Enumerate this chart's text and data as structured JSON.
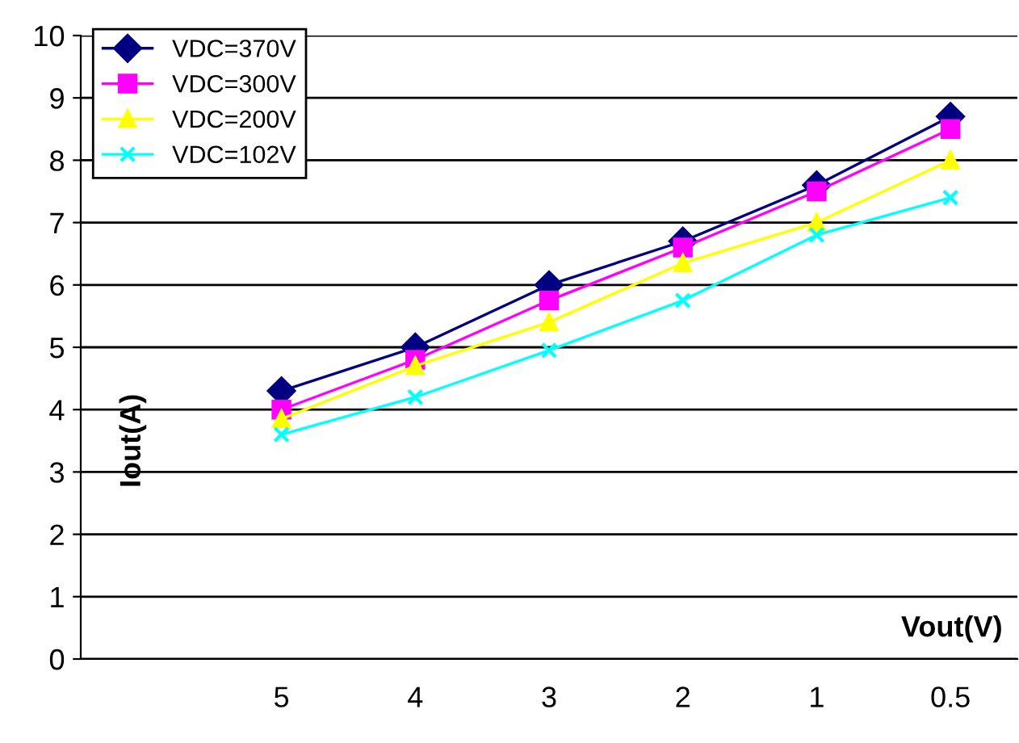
{
  "chart_data": {
    "type": "line",
    "xlabel": "Vout(V)",
    "ylabel": "Iout(A)",
    "categories": [
      null,
      "5",
      "4",
      "3",
      "2",
      "1",
      "0.5"
    ],
    "series": [
      {
        "name": "VDC=370V",
        "color": "#000080",
        "marker": "diamond",
        "values": [
          null,
          4.3,
          5.0,
          6.0,
          6.7,
          7.6,
          8.7
        ]
      },
      {
        "name": "VDC=300V",
        "color": "#ff00ff",
        "marker": "square",
        "values": [
          null,
          4.0,
          4.8,
          5.75,
          6.6,
          7.5,
          8.5
        ]
      },
      {
        "name": "VDC=200V",
        "color": "#ffff00",
        "marker": "triangle",
        "values": [
          null,
          3.85,
          4.7,
          5.4,
          6.35,
          7.0,
          8.0
        ]
      },
      {
        "name": "VDC=102V",
        "color": "#00ffff",
        "marker": "cross",
        "values": [
          null,
          3.6,
          4.2,
          4.95,
          5.75,
          6.8,
          7.4
        ]
      }
    ],
    "ylim": [
      0,
      10
    ],
    "yticks": [
      0,
      1,
      2,
      3,
      4,
      5,
      6,
      7,
      8,
      9,
      10
    ],
    "grid": "y",
    "legend": "top left",
    "line_style": "solid"
  }
}
